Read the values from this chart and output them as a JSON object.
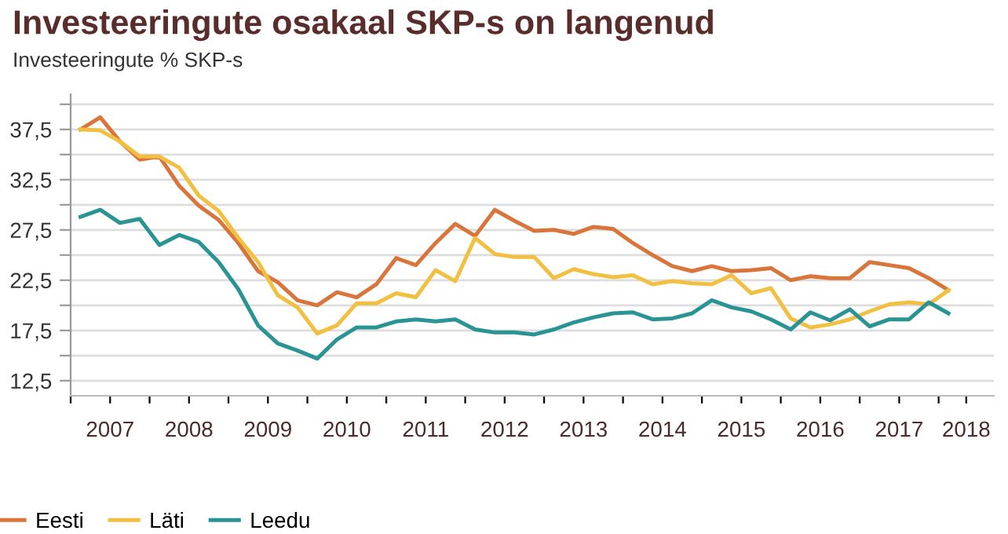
{
  "chart_data": {
    "type": "line",
    "title": "Investeeringute osakaal SKP-s on langenud",
    "subtitle": "Investeeringute % SKP-s",
    "x": [
      2007.125,
      2007.375,
      2007.625,
      2007.875,
      2008.125,
      2008.375,
      2008.625,
      2008.875,
      2009.125,
      2009.375,
      2009.625,
      2009.875,
      2010.125,
      2010.375,
      2010.625,
      2010.875,
      2011.125,
      2011.375,
      2011.625,
      2011.875,
      2012.125,
      2012.375,
      2012.625,
      2012.875,
      2013.125,
      2013.375,
      2013.625,
      2013.875,
      2014.125,
      2014.375,
      2014.625,
      2014.875,
      2015.125,
      2015.375,
      2015.625,
      2015.875,
      2016.125,
      2016.375,
      2016.625,
      2016.875,
      2017.125,
      2017.375,
      2017.625,
      2017.875,
      2018.125
    ],
    "series": [
      {
        "name": "Eesti",
        "color": "#d9743a",
        "values": [
          37.5,
          38.7,
          36.3,
          34.5,
          34.8,
          31.9,
          29.9,
          28.5,
          26.2,
          23.4,
          22.3,
          20.5,
          20.0,
          21.3,
          20.8,
          22.1,
          24.7,
          24.0,
          26.2,
          28.1,
          26.9,
          29.5,
          28.4,
          27.4,
          27.5,
          27.1,
          27.8,
          27.6,
          26.2,
          25.0,
          23.9,
          23.4,
          23.9,
          23.4,
          23.5,
          23.7,
          22.5,
          22.9,
          22.7,
          22.7,
          24.3,
          24.0,
          23.7,
          22.7,
          21.5
        ]
      },
      {
        "name": "Läti",
        "color": "#f2c040",
        "values": [
          37.5,
          37.4,
          36.3,
          34.8,
          34.8,
          33.7,
          30.9,
          29.4,
          26.7,
          24.3,
          21.0,
          19.8,
          17.2,
          18.0,
          20.2,
          20.2,
          21.2,
          20.8,
          23.5,
          22.4,
          26.7,
          25.1,
          24.8,
          24.8,
          22.7,
          23.6,
          23.1,
          22.8,
          23.0,
          22.1,
          22.4,
          22.2,
          22.1,
          23.0,
          21.2,
          21.7,
          18.7,
          17.8,
          18.1,
          18.6,
          19.4,
          20.1,
          20.3,
          20.1,
          21.5
        ]
      },
      {
        "name": "Leedu",
        "color": "#2a9494",
        "values": [
          28.8,
          29.5,
          28.2,
          28.6,
          26.0,
          27.0,
          26.3,
          24.3,
          21.6,
          18.0,
          16.2,
          15.5,
          14.7,
          16.6,
          17.8,
          17.8,
          18.4,
          18.6,
          18.4,
          18.6,
          17.6,
          17.3,
          17.3,
          17.1,
          17.6,
          18.3,
          18.8,
          19.2,
          19.3,
          18.6,
          18.7,
          19.2,
          20.5,
          19.8,
          19.4,
          18.6,
          17.6,
          19.3,
          18.5,
          19.6,
          17.9,
          18.6,
          18.6,
          20.3,
          19.2
        ]
      }
    ],
    "xlim": [
      2007,
      2018.7
    ],
    "xticks": [
      {
        "value": 2007,
        "label": null
      },
      {
        "value": 2007.5,
        "label": "2007"
      },
      {
        "value": 2008,
        "label": null
      },
      {
        "value": 2008.5,
        "label": "2008"
      },
      {
        "value": 2009,
        "label": null
      },
      {
        "value": 2009.5,
        "label": "2009"
      },
      {
        "value": 2010,
        "label": null
      },
      {
        "value": 2010.5,
        "label": "2010"
      },
      {
        "value": 2011,
        "label": null
      },
      {
        "value": 2011.5,
        "label": "2011"
      },
      {
        "value": 2012,
        "label": null
      },
      {
        "value": 2012.5,
        "label": "2012"
      },
      {
        "value": 2013,
        "label": null
      },
      {
        "value": 2013.5,
        "label": "2013"
      },
      {
        "value": 2014,
        "label": null
      },
      {
        "value": 2014.5,
        "label": "2014"
      },
      {
        "value": 2015,
        "label": null
      },
      {
        "value": 2015.5,
        "label": "2015"
      },
      {
        "value": 2016,
        "label": null
      },
      {
        "value": 2016.5,
        "label": "2016"
      },
      {
        "value": 2017,
        "label": null
      },
      {
        "value": 2017.5,
        "label": "2017"
      },
      {
        "value": 2018,
        "label": null
      },
      {
        "value": 2018.35,
        "label": "2018"
      }
    ],
    "ylim": [
      11,
      41
    ],
    "yticks": [
      {
        "value": 12.5,
        "label": "12,5"
      },
      {
        "value": 15,
        "label": null
      },
      {
        "value": 17.5,
        "label": "17,5"
      },
      {
        "value": 20,
        "label": null
      },
      {
        "value": 22.5,
        "label": "22,5"
      },
      {
        "value": 25,
        "label": null
      },
      {
        "value": 27.5,
        "label": "27,5"
      },
      {
        "value": 30,
        "label": null
      },
      {
        "value": 32.5,
        "label": "32,5"
      },
      {
        "value": 35,
        "label": null
      },
      {
        "value": 37.5,
        "label": "37,5"
      },
      {
        "value": 40,
        "label": null
      }
    ],
    "grid": "y",
    "legend": "bottom left",
    "line_style": "solid",
    "marker": "none"
  }
}
